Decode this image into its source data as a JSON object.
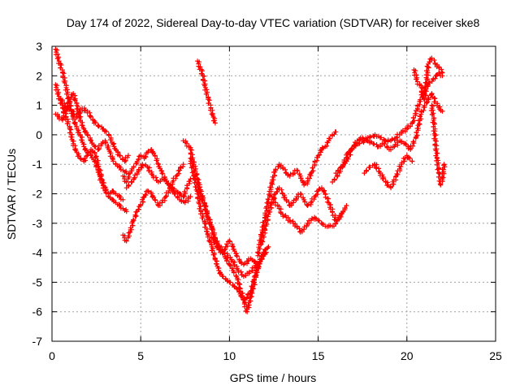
{
  "chart_data": {
    "type": "scatter",
    "title": "Day 174 of 2022, Sidereal Day-to-day VTEC variation (SDTVAR) for receiver ske8",
    "xlabel": "GPS time / hours",
    "ylabel": "SDTVAR / TECUs",
    "xlim": [
      0,
      25
    ],
    "ylim": [
      -7,
      3
    ],
    "xticks": [
      "0",
      "5",
      "10",
      "15",
      "20",
      "25"
    ],
    "yticks": [
      "-7",
      "-6",
      "-5",
      "-4",
      "-3",
      "-2",
      "-1",
      "0",
      "1",
      "2",
      "3"
    ],
    "grid": true,
    "legend": "none",
    "marker": "plus",
    "color": "#ff0000",
    "series": [
      {
        "x": [
          0.2,
          0.4,
          0.6,
          0.8,
          1.0,
          1.2,
          1.4,
          1.6,
          1.8,
          2.0,
          2.2,
          2.4,
          2.6,
          2.8,
          3.0,
          3.2,
          3.4,
          3.6,
          3.8,
          4.0,
          4.2
        ],
        "y": [
          2.9,
          2.5,
          2.1,
          1.6,
          1.0,
          0.6,
          0.2,
          0.0,
          -0.4,
          -0.6,
          -0.7,
          -0.9,
          -1.2,
          -1.6,
          -1.9,
          -2.1,
          -2.2,
          -2.3,
          -2.4,
          -2.5,
          -2.6
        ]
      },
      {
        "x": [
          0.2,
          0.4,
          0.6,
          0.8,
          1.0,
          1.2,
          1.4,
          1.6,
          1.8,
          2.0,
          2.2,
          2.4,
          2.6,
          2.8,
          3.0,
          3.2,
          3.4,
          3.6,
          3.8,
          4.0
        ],
        "y": [
          1.7,
          1.3,
          0.9,
          0.6,
          0.2,
          -0.3,
          -0.6,
          -0.8,
          -0.9,
          -0.7,
          -0.5,
          -0.6,
          -1.0,
          -1.5,
          -1.8,
          -2.0,
          -1.9,
          -2.0,
          -2.1,
          -2.2
        ]
      },
      {
        "x": [
          0.2,
          0.4,
          0.6,
          0.8,
          1.0,
          1.2,
          1.4,
          1.6,
          1.8,
          2.0,
          2.2,
          2.4,
          2.6,
          2.8,
          3.0,
          3.2,
          3.4,
          3.6,
          3.8,
          4.0,
          4.2
        ],
        "y": [
          0.7,
          0.6,
          0.5,
          0.8,
          1.2,
          1.4,
          1.0,
          0.5,
          0.2,
          0.0,
          -0.2,
          -0.4,
          -0.5,
          -0.3,
          -0.2,
          -0.5,
          -0.8,
          -1.0,
          -1.1,
          -1.2,
          -1.3
        ]
      },
      {
        "x": [
          0.5,
          0.8,
          1.1,
          1.4,
          1.7,
          2.0,
          2.3,
          2.6,
          2.9,
          3.2,
          3.5,
          3.8,
          4.1,
          4.3
        ],
        "y": [
          1.2,
          0.9,
          0.8,
          0.6,
          0.9,
          0.8,
          0.5,
          0.3,
          0.2,
          0.0,
          -0.4,
          -0.7,
          -0.9,
          -0.7
        ]
      },
      {
        "x": [
          4.0,
          4.2,
          4.4,
          4.6,
          4.8,
          5.0,
          5.2,
          5.4,
          5.6,
          5.8,
          6.0,
          6.2,
          6.4,
          6.6,
          6.8,
          7.0,
          7.2,
          7.4
        ],
        "y": [
          -3.4,
          -3.6,
          -3.3,
          -2.9,
          -2.6,
          -2.4,
          -2.1,
          -1.9,
          -2.0,
          -2.2,
          -2.4,
          -2.3,
          -2.1,
          -1.9,
          -1.6,
          -1.4,
          -1.2,
          -1.0
        ]
      },
      {
        "x": [
          4.0,
          4.2,
          4.4,
          4.6,
          4.8,
          5.0,
          5.2,
          5.4,
          5.6,
          5.8,
          6.0,
          6.2,
          6.4,
          6.6,
          6.8,
          7.0,
          7.2,
          7.4,
          7.6,
          7.8
        ],
        "y": [
          -1.4,
          -1.6,
          -1.3,
          -1.1,
          -0.9,
          -0.7,
          -0.8,
          -0.6,
          -0.5,
          -0.7,
          -1.0,
          -1.3,
          -1.5,
          -1.7,
          -1.8,
          -1.9,
          -2.0,
          -2.1,
          -1.8,
          -1.5
        ]
      },
      {
        "x": [
          4.2,
          4.5,
          4.8,
          5.1,
          5.4,
          5.7,
          6.0,
          6.3,
          6.6,
          6.9,
          7.2,
          7.5,
          7.8
        ],
        "y": [
          -1.8,
          -1.6,
          -1.3,
          -1.0,
          -1.1,
          -1.4,
          -1.6,
          -1.5,
          -1.7,
          -2.0,
          -2.2,
          -2.3,
          -2.1
        ]
      },
      {
        "x": [
          7.4,
          7.6,
          7.8,
          8.0,
          8.2,
          8.4,
          8.6,
          8.8,
          9.0,
          9.2,
          9.4,
          9.6,
          9.8,
          10.0,
          10.2,
          10.4,
          10.6,
          10.8,
          11.0,
          11.2,
          11.4,
          11.6
        ],
        "y": [
          -0.2,
          -0.3,
          -0.5,
          -1.0,
          -1.5,
          -2.0,
          -2.4,
          -2.8,
          -3.1,
          -3.5,
          -3.8,
          -4.0,
          -4.2,
          -4.4,
          -4.6,
          -4.8,
          -5.2,
          -5.6,
          -6.0,
          -5.5,
          -5.0,
          -4.4
        ]
      },
      {
        "x": [
          7.8,
          8.0,
          8.2,
          8.4,
          8.6,
          8.8,
          9.0,
          9.2,
          9.4,
          9.6,
          9.8,
          10.0,
          10.2,
          10.4,
          10.6,
          10.8,
          11.0,
          11.2,
          11.4,
          11.6,
          11.8,
          12.0
        ],
        "y": [
          -0.8,
          -1.4,
          -2.0,
          -2.6,
          -3.0,
          -3.4,
          -3.8,
          -4.2,
          -4.6,
          -4.8,
          -4.9,
          -5.0,
          -5.1,
          -5.2,
          -5.4,
          -5.6,
          -5.5,
          -5.3,
          -4.9,
          -4.5,
          -4.2,
          -3.9
        ]
      },
      {
        "x": [
          8.2,
          8.4,
          8.6,
          8.8,
          9.0,
          9.2,
          9.4,
          9.6,
          9.8,
          10.0,
          10.2,
          10.4,
          10.6,
          10.8,
          11.0,
          11.2,
          11.4,
          11.6,
          11.8,
          12.0
        ],
        "y": [
          -1.6,
          -2.0,
          -2.4,
          -2.8,
          -3.2,
          -3.6,
          -3.9,
          -4.0,
          -3.8,
          -3.6,
          -3.8,
          -4.1,
          -4.3,
          -4.4,
          -4.3,
          -4.2,
          -4.3,
          -4.4,
          -4.2,
          -4.0
        ]
      },
      {
        "x": [
          8.2,
          8.35,
          8.5,
          8.65,
          8.8,
          8.95,
          9.1,
          9.2
        ],
        "y": [
          2.5,
          2.3,
          2.0,
          1.6,
          1.2,
          0.9,
          0.6,
          0.4
        ]
      },
      {
        "x": [
          9.0,
          9.3,
          9.6,
          9.9,
          10.2,
          10.5,
          10.8,
          11.1,
          11.4,
          11.7,
          12.0,
          12.2
        ],
        "y": [
          -3.5,
          -3.7,
          -3.9,
          -4.1,
          -4.3,
          -4.6,
          -4.8,
          -4.7,
          -4.5,
          -4.3,
          -4.0,
          -3.8
        ]
      },
      {
        "x": [
          11.6,
          11.8,
          12.0,
          12.2,
          12.4,
          12.6,
          12.8,
          13.0,
          13.2,
          13.4,
          13.6,
          13.8,
          14.0,
          14.2,
          14.4,
          14.6,
          14.8,
          15.0,
          15.2,
          15.4,
          15.6,
          15.8,
          16.0
        ],
        "y": [
          -4.1,
          -3.4,
          -2.8,
          -2.2,
          -1.6,
          -1.2,
          -1.0,
          -1.1,
          -1.3,
          -1.4,
          -1.3,
          -1.2,
          -1.4,
          -1.7,
          -1.6,
          -1.3,
          -1.0,
          -0.7,
          -0.5,
          -0.4,
          -0.2,
          0.0,
          0.1
        ]
      },
      {
        "x": [
          11.8,
          12.0,
          12.2,
          12.4,
          12.6,
          12.8,
          13.0,
          13.2,
          13.4,
          13.6,
          13.8,
          14.0,
          14.2,
          14.4,
          14.6,
          14.8,
          15.0,
          15.2,
          15.4,
          15.6,
          15.8,
          16.0,
          16.2,
          16.4,
          16.6
        ],
        "y": [
          -3.7,
          -3.2,
          -2.7,
          -2.3,
          -2.0,
          -1.8,
          -2.0,
          -2.2,
          -2.4,
          -2.3,
          -2.1,
          -2.0,
          -2.2,
          -2.4,
          -2.3,
          -2.1,
          -1.9,
          -1.8,
          -2.0,
          -2.3,
          -2.6,
          -2.9,
          -2.8,
          -2.6,
          -2.4
        ]
      },
      {
        "x": [
          12.4,
          12.6,
          12.8,
          13.0,
          13.2,
          13.4,
          13.6,
          13.8,
          14.0,
          14.2,
          14.4,
          14.6,
          14.8,
          15.0,
          15.2,
          15.4,
          15.6,
          15.8,
          16.0,
          16.2,
          16.4
        ],
        "y": [
          -2.1,
          -2.3,
          -2.5,
          -2.7,
          -2.8,
          -2.9,
          -3.0,
          -3.1,
          -3.3,
          -3.2,
          -3.0,
          -2.9,
          -2.8,
          -2.9,
          -3.0,
          -3.1,
          -3.1,
          -3.1,
          -3.0,
          -2.8,
          -2.6
        ]
      },
      {
        "x": [
          15.8,
          16.1,
          16.4,
          16.7,
          17.0,
          17.3,
          17.6,
          17.9,
          18.2,
          18.5,
          18.8,
          19.1,
          19.4,
          19.7,
          20.0,
          20.3,
          20.6,
          20.9,
          21.2,
          21.5,
          21.8,
          22.0
        ],
        "y": [
          -1.6,
          -1.4,
          -1.0,
          -0.6,
          -0.4,
          -0.3,
          -0.2,
          -0.1,
          0.0,
          -0.1,
          -0.2,
          -0.2,
          -0.1,
          0.1,
          0.2,
          0.4,
          0.9,
          1.4,
          1.7,
          1.9,
          2.1,
          2.0
        ]
      },
      {
        "x": [
          16.0,
          16.3,
          16.6,
          16.9,
          17.2,
          17.5,
          17.8,
          18.1,
          18.4,
          18.7,
          19.0,
          19.3,
          19.6,
          19.9,
          20.2,
          20.5,
          20.8,
          21.1,
          21.4,
          21.7,
          22.0
        ],
        "y": [
          -1.3,
          -1.1,
          -0.9,
          -0.5,
          -0.2,
          -0.1,
          -0.2,
          -0.3,
          -0.4,
          -0.3,
          -0.5,
          -0.4,
          -0.2,
          -0.3,
          -0.5,
          -0.1,
          0.7,
          1.1,
          1.4,
          1.0,
          0.8
        ]
      },
      {
        "x": [
          17.6,
          17.9,
          18.2,
          18.5,
          18.8,
          19.1,
          19.4,
          19.7,
          20.0,
          20.3
        ],
        "y": [
          -1.3,
          -1.1,
          -1.0,
          -1.3,
          -1.6,
          -1.8,
          -1.4,
          -1.0,
          -0.7,
          -0.9
        ]
      },
      {
        "x": [
          20.4,
          20.6,
          20.8,
          21.0,
          21.2,
          21.4,
          21.6,
          21.8,
          22.0
        ],
        "y": [
          2.2,
          1.8,
          1.6,
          1.2,
          2.4,
          2.6,
          2.4,
          2.3,
          2.1
        ]
      },
      {
        "x": [
          21.4,
          21.5,
          21.6,
          21.7,
          21.8,
          21.9,
          22.0,
          22.1
        ],
        "y": [
          1.0,
          0.5,
          -0.2,
          -0.8,
          -1.3,
          -1.7,
          -1.5,
          -1.0
        ]
      }
    ]
  }
}
